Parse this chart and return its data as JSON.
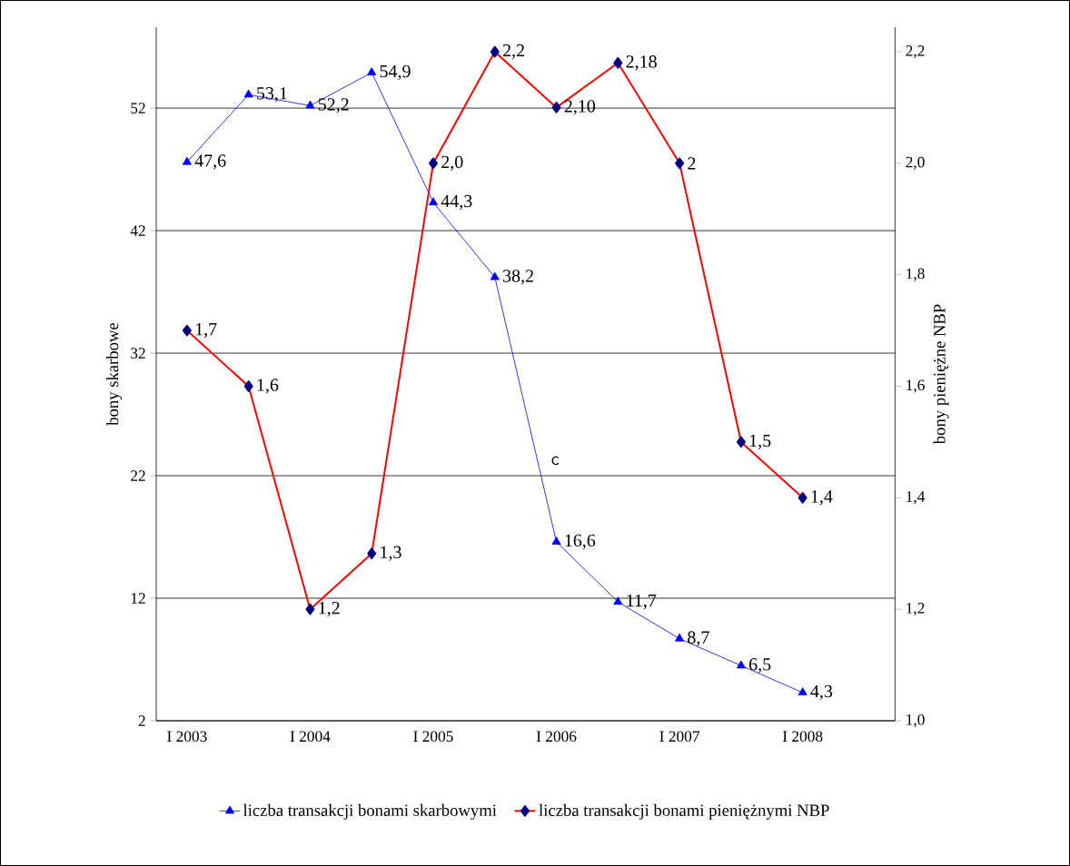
{
  "chart_data": {
    "type": "line",
    "categories": [
      "I 2003",
      null,
      "I 2004",
      null,
      "I 2005",
      null,
      "I 2006",
      null,
      "I 2007",
      null,
      "I 2008",
      null
    ],
    "series": [
      {
        "name": "liczba transakcji bonami skarbowymi",
        "color": "#0000ff",
        "marker": "triangle",
        "values": [
          47.6,
          53.1,
          52.2,
          54.9,
          44.3,
          38.2,
          16.6,
          11.7,
          8.7,
          6.5,
          4.3,
          null
        ],
        "value_labels": [
          "47,6",
          "53,1",
          "52,2",
          "54,9",
          "44,3",
          "38,2",
          "16,6",
          "11,7",
          "8,7",
          "6,5",
          "4,3",
          null
        ]
      },
      {
        "name": "liczba transakcji bonami pieniężnymi NBP",
        "color": "#ff0000",
        "marker": "diamond",
        "axis": "y2",
        "values": [
          1.7,
          1.6,
          1.2,
          1.3,
          2.0,
          2.2,
          2.1,
          2.18,
          2,
          1.5,
          1.4,
          null
        ],
        "value_labels": [
          "1,7",
          "1,6",
          "1,2",
          "1,3",
          "2,0",
          "2,2",
          "2,10",
          "2,18",
          "2",
          "1,5",
          "1,4",
          null
        ]
      }
    ],
    "ylabel": "bony skarbowe",
    "y2label": "bony pieniężne NBP",
    "ylim": [
      2,
      58.6
    ],
    "yticks": [
      2,
      12,
      22,
      32,
      42,
      52
    ],
    "y2lim": [
      1.0,
      2.244
    ],
    "y2ticks": [
      {
        "value": 1.0,
        "label": "1,0"
      },
      {
        "value": 1.2,
        "label": "1,2"
      },
      {
        "value": 1.4,
        "label": "1,4"
      },
      {
        "value": 1.6,
        "label": "1,6"
      },
      {
        "value": 1.8,
        "label": "1,8"
      },
      {
        "value": 2.0,
        "label": "2,0"
      },
      {
        "value": 2.2,
        "label": "2,2"
      }
    ],
    "grid": "y",
    "legend": "bottom",
    "line_style": "solid",
    "annotations": [
      "c"
    ]
  }
}
